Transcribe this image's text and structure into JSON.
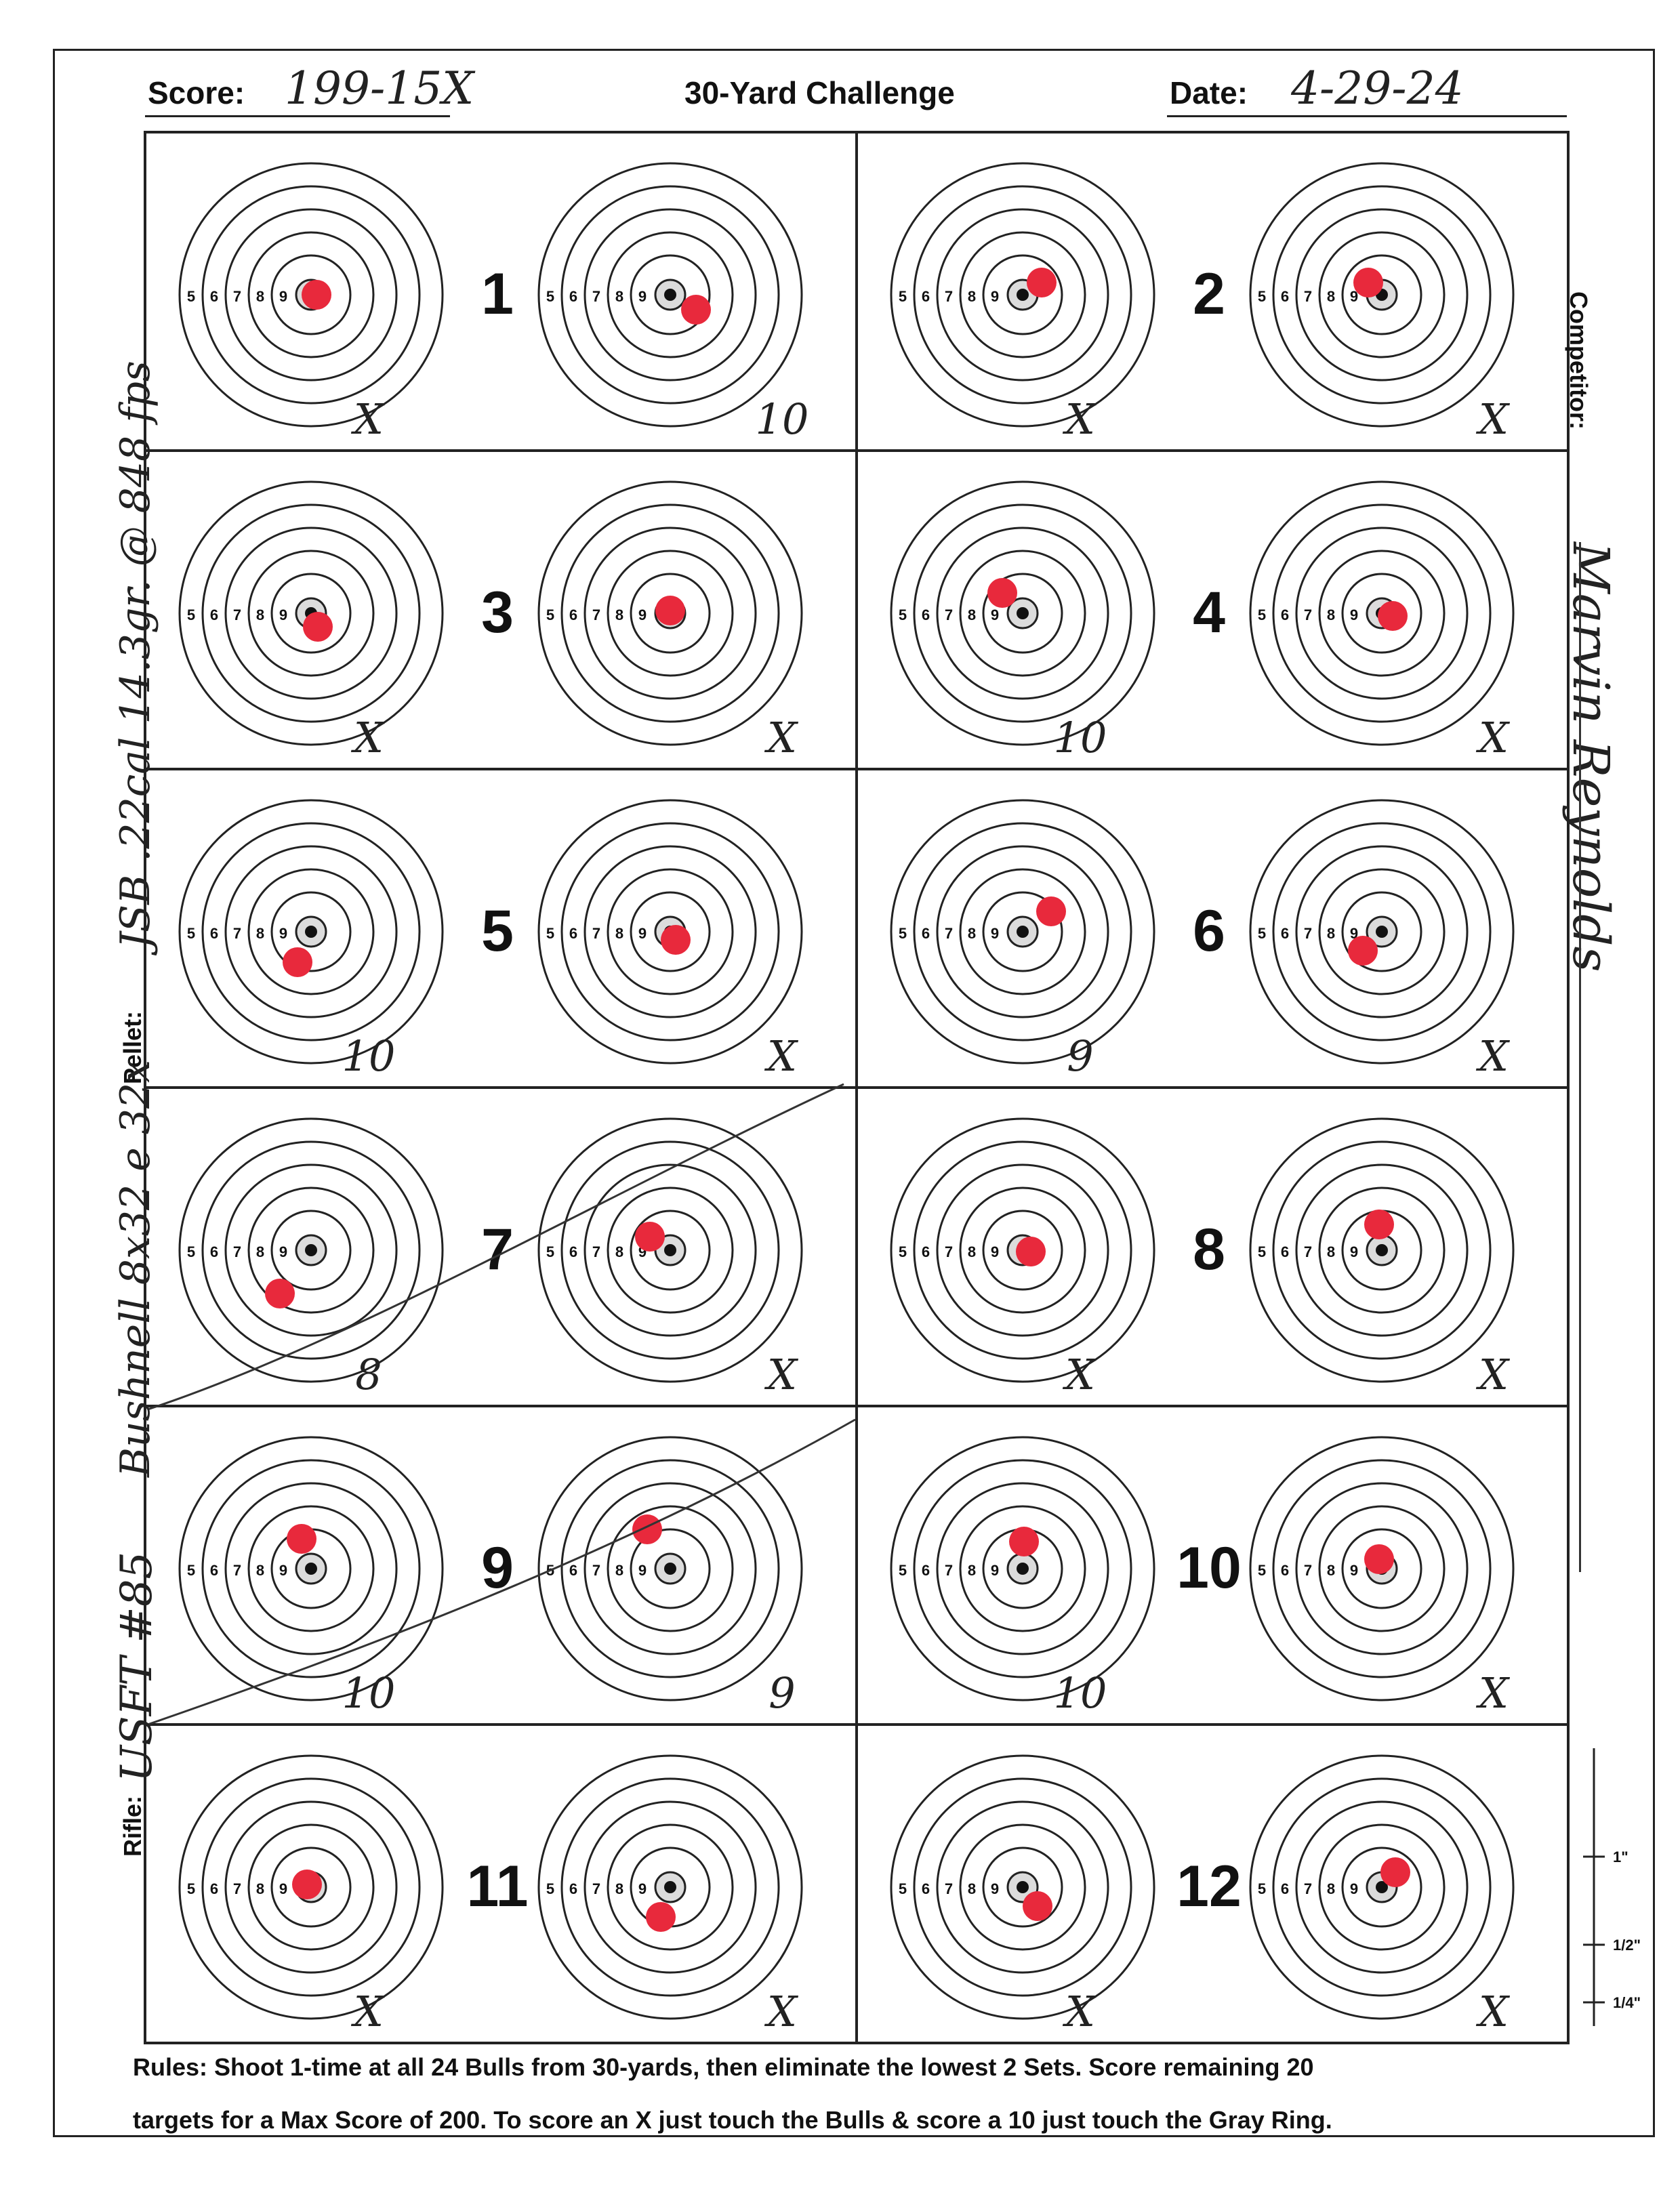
{
  "header": {
    "score_label": "Score:",
    "score_value": "199-15X",
    "title": "30-Yard Challenge",
    "date_label": "Date:",
    "date_value": "4-29-24"
  },
  "side_labels": {
    "rifle_label": "Rifle:",
    "pellet_label": "Pellet:",
    "competitor_label": "Competitor:"
  },
  "handwritten": {
    "rifle": "USFT #85",
    "scope": "Bushnell 8x32 e 32x",
    "pellet": "JSB .22cal 14.3gr. @ 848 fps",
    "competitor": "Marvin Reynolds"
  },
  "ring_labels": [
    "5",
    "6",
    "7",
    "8",
    "9"
  ],
  "sets": [
    {
      "number": "1",
      "scores": [
        "X",
        "10"
      ]
    },
    {
      "number": "2",
      "scores": [
        "X",
        "X"
      ]
    },
    {
      "number": "3",
      "scores": [
        "X",
        "X"
      ]
    },
    {
      "number": "4",
      "scores": [
        "10",
        "X"
      ]
    },
    {
      "number": "5",
      "scores": [
        "10",
        "X"
      ]
    },
    {
      "number": "6",
      "scores": [
        "9",
        "X"
      ]
    },
    {
      "number": "7",
      "scores": [
        "8",
        "X"
      ]
    },
    {
      "number": "8",
      "scores": [
        "X",
        "X"
      ]
    },
    {
      "number": "9",
      "scores": [
        "10",
        "9"
      ]
    },
    {
      "number": "10",
      "scores": [
        "10",
        "X"
      ]
    },
    {
      "number": "11",
      "scores": [
        "X",
        "X"
      ]
    },
    {
      "number": "12",
      "scores": [
        "X",
        "X"
      ]
    }
  ],
  "scale_labels": [
    "1\"",
    "1/2\"",
    "1/4\""
  ],
  "rules": {
    "line1": "Rules: Shoot 1-time at all 24 Bulls from 30-yards, then eliminate the lowest 2 Sets. Score remaining 20",
    "line2": "targets for a Max Score of 200. To score an X just touch the Bulls & score a 10 just touch the Gray Ring."
  },
  "colors": {
    "ink": "#222222",
    "hit": "#e8293c",
    "gray_ring": "#9a9a9a"
  }
}
